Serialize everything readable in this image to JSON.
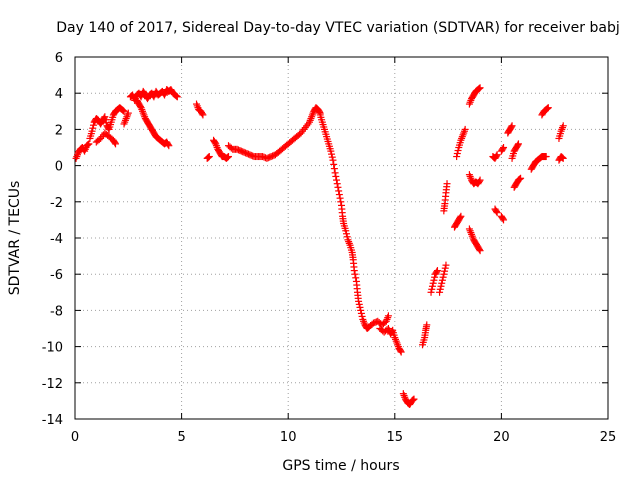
{
  "chart_data": {
    "type": "scatter",
    "title": "Day 140 of 2017, Sidereal Day-to-day VTEC variation (SDTVAR) for receiver babj",
    "xlabel": "GPS time / hours",
    "ylabel": "SDTVAR / TECUs",
    "xlim": [
      0,
      25
    ],
    "ylim": [
      -14,
      6
    ],
    "xticks": [
      0,
      5,
      10,
      15,
      20,
      25
    ],
    "yticks": [
      -14,
      -12,
      -10,
      -8,
      -6,
      -4,
      -2,
      0,
      2,
      4,
      6
    ],
    "grid": true,
    "marker": "+",
    "color": "#ff0000",
    "series": [
      {
        "name": "SDTVAR",
        "segments": [
          [
            [
              0.05,
              0.4
            ],
            [
              0.15,
              0.7
            ],
            [
              0.25,
              0.9
            ],
            [
              0.35,
              1.0
            ],
            [
              0.45,
              0.8
            ],
            [
              0.55,
              1.1
            ],
            [
              0.65,
              1.2
            ]
          ],
          [
            [
              0.7,
              1.5
            ],
            [
              0.8,
              1.9
            ],
            [
              0.9,
              2.4
            ],
            [
              1.0,
              2.6
            ],
            [
              1.1,
              2.5
            ],
            [
              1.2,
              2.3
            ],
            [
              1.3,
              2.5
            ],
            [
              1.4,
              2.7
            ],
            [
              1.5,
              2.2
            ],
            [
              1.6,
              2.0
            ],
            [
              1.7,
              2.4
            ],
            [
              1.8,
              2.8
            ],
            [
              1.9,
              3.0
            ],
            [
              2.0,
              3.1
            ],
            [
              2.1,
              3.2
            ],
            [
              2.2,
              3.1
            ],
            [
              2.3,
              3.0
            ]
          ],
          [
            [
              1.0,
              1.3
            ],
            [
              1.2,
              1.5
            ],
            [
              1.4,
              1.8
            ],
            [
              1.6,
              1.6
            ],
            [
              1.8,
              1.4
            ],
            [
              1.9,
              1.2
            ]
          ],
          [
            [
              2.3,
              2.3
            ],
            [
              2.4,
              2.6
            ],
            [
              2.5,
              2.9
            ]
          ],
          [
            [
              2.6,
              3.8
            ],
            [
              2.7,
              3.9
            ],
            [
              2.8,
              3.6
            ],
            [
              2.9,
              3.9
            ],
            [
              3.0,
              4.0
            ],
            [
              3.1,
              3.8
            ],
            [
              3.2,
              4.1
            ],
            [
              3.3,
              3.9
            ],
            [
              3.4,
              3.7
            ],
            [
              3.5,
              3.9
            ],
            [
              3.6,
              4.0
            ],
            [
              3.7,
              3.8
            ],
            [
              3.8,
              4.1
            ],
            [
              3.9,
              3.9
            ],
            [
              4.0,
              4.0
            ],
            [
              4.1,
              4.1
            ],
            [
              4.2,
              3.9
            ],
            [
              4.3,
              4.2
            ],
            [
              4.4,
              4.1
            ],
            [
              4.5,
              4.2
            ],
            [
              4.6,
              4.0
            ],
            [
              4.7,
              3.9
            ],
            [
              4.8,
              3.8
            ]
          ],
          [
            [
              2.9,
              3.6
            ],
            [
              3.0,
              3.4
            ],
            [
              3.1,
              3.2
            ],
            [
              3.2,
              2.9
            ],
            [
              3.3,
              2.6
            ],
            [
              3.4,
              2.4
            ],
            [
              3.5,
              2.2
            ],
            [
              3.6,
              2.0
            ],
            [
              3.7,
              1.8
            ],
            [
              3.8,
              1.6
            ],
            [
              3.9,
              1.5
            ],
            [
              4.0,
              1.4
            ],
            [
              4.1,
              1.3
            ],
            [
              4.2,
              1.2
            ],
            [
              4.3,
              1.3
            ],
            [
              4.4,
              1.1
            ]
          ],
          [
            [
              5.7,
              3.4
            ],
            [
              5.8,
              3.1
            ],
            [
              5.9,
              3.0
            ],
            [
              6.0,
              2.8
            ]
          ],
          [
            [
              6.2,
              0.4
            ],
            [
              6.3,
              0.5
            ]
          ],
          [
            [
              6.5,
              1.4
            ],
            [
              6.6,
              1.2
            ],
            [
              6.7,
              0.9
            ],
            [
              6.8,
              0.7
            ],
            [
              6.9,
              0.5
            ],
            [
              7.0,
              0.5
            ],
            [
              7.1,
              0.4
            ],
            [
              7.2,
              0.5
            ]
          ],
          [
            [
              7.2,
              1.1
            ],
            [
              7.4,
              0.9
            ],
            [
              7.6,
              0.9
            ],
            [
              7.8,
              0.8
            ],
            [
              8.0,
              0.7
            ],
            [
              8.2,
              0.6
            ],
            [
              8.4,
              0.5
            ],
            [
              8.6,
              0.5
            ],
            [
              8.8,
              0.5
            ],
            [
              9.0,
              0.4
            ],
            [
              9.2,
              0.5
            ],
            [
              9.4,
              0.6
            ],
            [
              9.6,
              0.8
            ],
            [
              9.8,
              1.0
            ],
            [
              10.0,
              1.2
            ],
            [
              10.2,
              1.4
            ],
            [
              10.4,
              1.6
            ],
            [
              10.6,
              1.8
            ],
            [
              10.8,
              2.1
            ],
            [
              11.0,
              2.4
            ],
            [
              11.1,
              2.7
            ],
            [
              11.2,
              3.0
            ],
            [
              11.3,
              3.2
            ],
            [
              11.4,
              3.1
            ],
            [
              11.5,
              2.9
            ]
          ],
          [
            [
              11.5,
              2.8
            ],
            [
              11.6,
              2.4
            ],
            [
              11.7,
              2.0
            ],
            [
              11.8,
              1.6
            ],
            [
              11.9,
              1.2
            ],
            [
              12.0,
              0.8
            ],
            [
              12.1,
              0.3
            ],
            [
              12.2,
              -0.4
            ],
            [
              12.3,
              -1.0
            ],
            [
              12.4,
              -1.6
            ],
            [
              12.5,
              -2.2
            ],
            [
              12.55,
              -2.8
            ],
            [
              12.6,
              -3.2
            ],
            [
              12.7,
              -3.6
            ],
            [
              12.8,
              -4.1
            ],
            [
              12.9,
              -4.4
            ],
            [
              13.0,
              -4.8
            ],
            [
              13.05,
              -5.2
            ],
            [
              13.1,
              -5.8
            ],
            [
              13.2,
              -6.4
            ],
            [
              13.25,
              -7.0
            ],
            [
              13.3,
              -7.5
            ],
            [
              13.4,
              -8.0
            ],
            [
              13.5,
              -8.5
            ],
            [
              13.6,
              -8.8
            ],
            [
              13.7,
              -9.0
            ],
            [
              13.8,
              -8.9
            ],
            [
              14.0,
              -8.7
            ],
            [
              14.2,
              -8.6
            ],
            [
              14.4,
              -8.8
            ],
            [
              14.6,
              -8.6
            ],
            [
              14.7,
              -8.3
            ]
          ],
          [
            [
              14.3,
              -9.0
            ],
            [
              14.5,
              -9.2
            ],
            [
              14.7,
              -9.0
            ],
            [
              14.8,
              -9.3
            ],
            [
              14.9,
              -9.1
            ],
            [
              15.0,
              -9.5
            ],
            [
              15.1,
              -9.8
            ],
            [
              15.2,
              -10.1
            ],
            [
              15.3,
              -10.3
            ]
          ],
          [
            [
              15.4,
              -12.6
            ],
            [
              15.5,
              -12.9
            ],
            [
              15.6,
              -13.1
            ],
            [
              15.7,
              -13.2
            ],
            [
              15.8,
              -13.0
            ],
            [
              15.9,
              -12.9
            ]
          ],
          [
            [
              16.3,
              -9.9
            ],
            [
              16.4,
              -9.5
            ],
            [
              16.45,
              -9.1
            ],
            [
              16.5,
              -8.8
            ]
          ],
          [
            [
              16.7,
              -7.0
            ],
            [
              16.8,
              -6.5
            ],
            [
              16.9,
              -6.0
            ],
            [
              17.0,
              -5.8
            ]
          ],
          [
            [
              17.1,
              -7.0
            ],
            [
              17.2,
              -6.5
            ],
            [
              17.3,
              -6.0
            ],
            [
              17.4,
              -5.5
            ]
          ],
          [
            [
              17.3,
              -2.5
            ],
            [
              17.35,
              -2.1
            ],
            [
              17.4,
              -1.5
            ],
            [
              17.45,
              -1.0
            ]
          ],
          [
            [
              17.8,
              -3.4
            ],
            [
              17.9,
              -3.2
            ],
            [
              18.0,
              -3.0
            ],
            [
              18.1,
              -2.8
            ]
          ],
          [
            [
              17.9,
              0.5
            ],
            [
              18.0,
              1.0
            ],
            [
              18.1,
              1.4
            ],
            [
              18.2,
              1.7
            ],
            [
              18.3,
              2.0
            ]
          ],
          [
            [
              18.5,
              -3.5
            ],
            [
              18.6,
              -3.8
            ],
            [
              18.7,
              -4.1
            ],
            [
              18.8,
              -4.3
            ],
            [
              18.9,
              -4.5
            ],
            [
              19.0,
              -4.7
            ]
          ],
          [
            [
              18.5,
              -0.5
            ],
            [
              18.6,
              -0.8
            ],
            [
              18.7,
              -1.0
            ],
            [
              18.8,
              -0.9
            ],
            [
              18.9,
              -1.0
            ],
            [
              19.0,
              -0.8
            ]
          ],
          [
            [
              18.5,
              3.4
            ],
            [
              18.6,
              3.7
            ],
            [
              18.7,
              3.9
            ],
            [
              18.8,
              4.1
            ],
            [
              18.9,
              4.2
            ],
            [
              19.0,
              4.3
            ]
          ],
          [
            [
              19.6,
              0.5
            ],
            [
              19.7,
              0.4
            ],
            [
              19.8,
              0.6
            ]
          ],
          [
            [
              19.7,
              -2.4
            ],
            [
              19.8,
              -2.6
            ]
          ],
          [
            [
              20.0,
              -2.8
            ],
            [
              20.1,
              -3.0
            ]
          ],
          [
            [
              20.0,
              0.8
            ],
            [
              20.1,
              1.0
            ]
          ],
          [
            [
              20.3,
              1.8
            ],
            [
              20.4,
              2.0
            ],
            [
              20.5,
              2.2
            ]
          ],
          [
            [
              20.5,
              0.4
            ],
            [
              20.6,
              0.8
            ],
            [
              20.7,
              1.0
            ],
            [
              20.8,
              1.2
            ]
          ],
          [
            [
              20.6,
              -1.2
            ],
            [
              20.7,
              -1.0
            ],
            [
              20.8,
              -0.8
            ],
            [
              20.9,
              -0.7
            ]
          ],
          [
            [
              21.4,
              -0.2
            ],
            [
              21.5,
              0.0
            ],
            [
              21.6,
              0.2
            ],
            [
              21.7,
              0.3
            ],
            [
              21.8,
              0.4
            ],
            [
              21.9,
              0.5
            ],
            [
              22.0,
              0.5
            ],
            [
              22.1,
              0.5
            ]
          ],
          [
            [
              21.9,
              2.8
            ],
            [
              22.0,
              3.0
            ],
            [
              22.1,
              3.1
            ],
            [
              22.2,
              3.2
            ]
          ],
          [
            [
              22.7,
              0.3
            ],
            [
              22.8,
              0.5
            ],
            [
              22.9,
              0.4
            ]
          ],
          [
            [
              22.7,
              1.5
            ],
            [
              22.8,
              1.9
            ],
            [
              22.9,
              2.2
            ]
          ]
        ]
      }
    ]
  }
}
